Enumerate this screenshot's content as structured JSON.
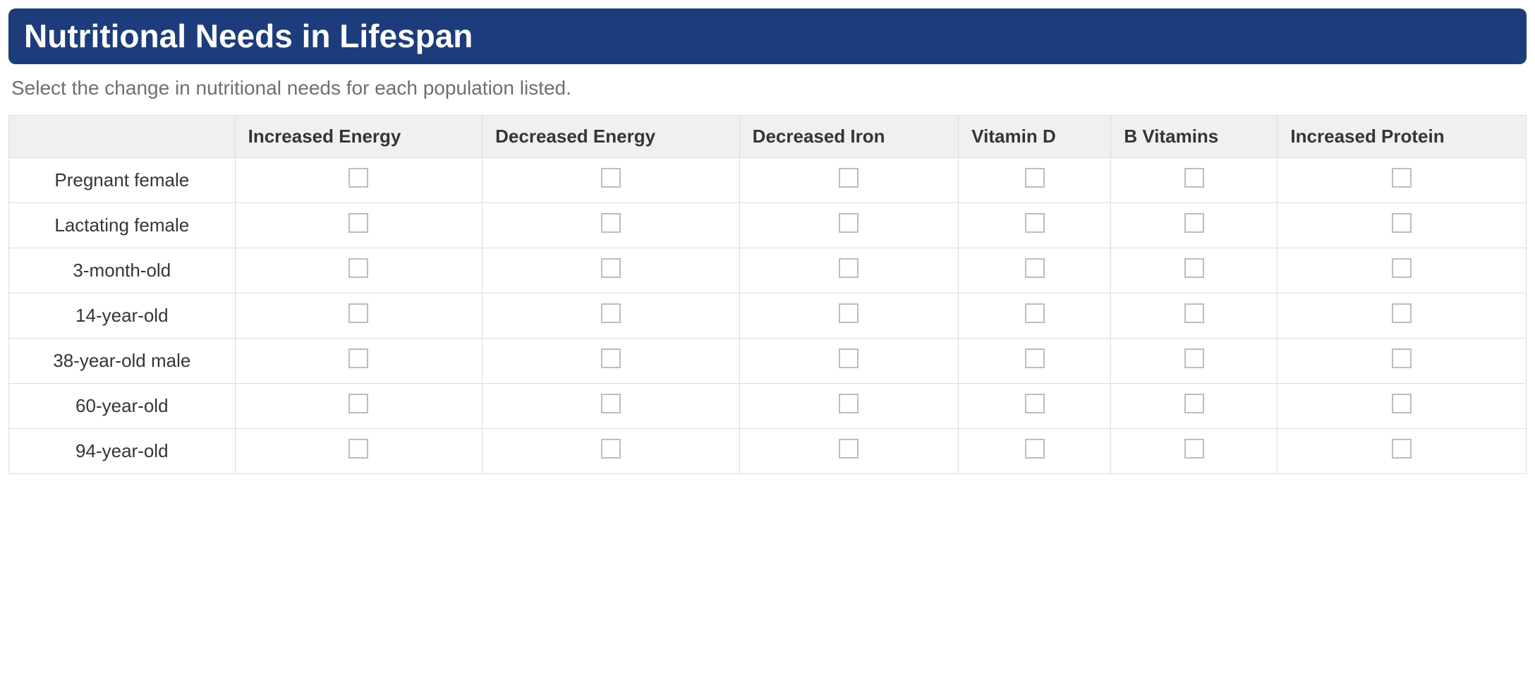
{
  "header": {
    "title": "Nutritional Needs in Lifespan"
  },
  "instruction": "Select the change in nutritional needs for each population listed.",
  "table": {
    "columns": [
      "Increased Energy",
      "Decreased Energy",
      "Decreased Iron",
      "Vitamin D",
      "B Vitamins",
      "Increased Protein"
    ],
    "rows": [
      "Pregnant female",
      "Lactating female",
      "3-month-old",
      "14-year-old",
      "38-year-old male",
      "60-year-old",
      "94-year-old"
    ]
  },
  "colors": {
    "header_bg": "#1c3c7b",
    "header_text": "#ffffff",
    "instruction_text": "#6f6f6f",
    "table_header_bg": "#f0f0f0",
    "table_border": "#dcdcdc",
    "checkbox_border": "#bdbdbd"
  }
}
